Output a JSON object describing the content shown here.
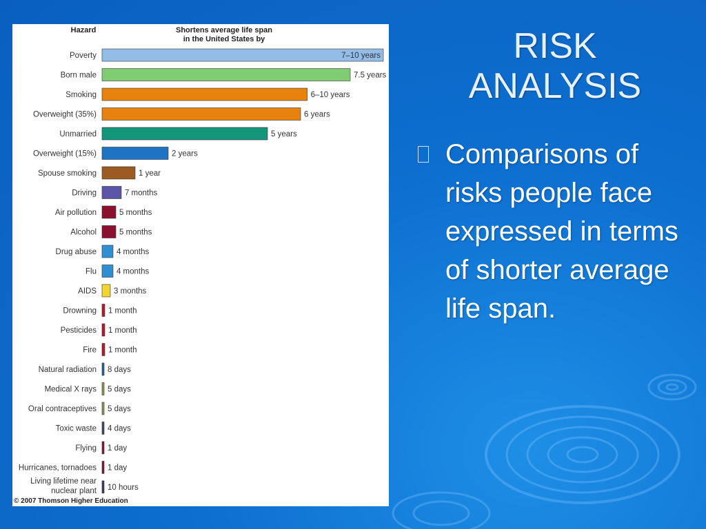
{
  "slide": {
    "title_line1": "RISK",
    "title_line2": "ANALYSIS",
    "bullet": "Comparisons of risks people face expressed in terms of shorter average life span."
  },
  "chart_data": {
    "type": "bar",
    "orientation": "horizontal",
    "header_hazard": "Hazard",
    "header_value_line1": "Shortens average life span",
    "header_value_line2": "in the United States by",
    "copyright": "© 2007 Thomson Higher Education",
    "categories": [
      "Poverty",
      "Born male",
      "Smoking",
      "Overweight (35%)",
      "Unmarried",
      "Overweight (15%)",
      "Spouse smoking",
      "Driving",
      "Air pollution",
      "Alcohol",
      "Drug abuse",
      "Flu",
      "AIDS",
      "Drowning",
      "Pesticides",
      "Fire",
      "Natural radiation",
      "Medical X rays",
      "Oral contraceptives",
      "Toxic waste",
      "Flying",
      "Hurricanes, tornadoes",
      "Living lifetime near nuclear plant"
    ],
    "labels": [
      "7–10 years",
      "7.5 years",
      "6–10 years",
      "6 years",
      "5 years",
      "2 years",
      "1 year",
      "7 months",
      "5 months",
      "5 months",
      "4 months",
      "4 months",
      "3 months",
      "1 month",
      "1 month",
      "1 month",
      "8 days",
      "5 days",
      "5 days",
      "4 days",
      "1 day",
      "1 day",
      "10 hours"
    ],
    "values_years": [
      8.5,
      7.5,
      6.2,
      6,
      5,
      2,
      1,
      0.583,
      0.417,
      0.417,
      0.333,
      0.333,
      0.25,
      0.083,
      0.083,
      0.083,
      0.022,
      0.014,
      0.014,
      0.011,
      0.003,
      0.003,
      0.001
    ],
    "colors": [
      "#93bde6",
      "#80cc73",
      "#e8820f",
      "#e8820f",
      "#13967a",
      "#1f73c4",
      "#9c5b22",
      "#5a55a6",
      "#8b1030",
      "#8b1030",
      "#2f8fd1",
      "#2f8fd1",
      "#f2d530",
      "#b31b2f",
      "#b31b2f",
      "#b31b2f",
      "#2a5f96",
      "#8a9a5b",
      "#8a9a5b",
      "#3a4a6a",
      "#7a1a3a",
      "#7a1a3a",
      "#3a3a5a"
    ],
    "xlim": [
      0,
      8.5
    ]
  }
}
